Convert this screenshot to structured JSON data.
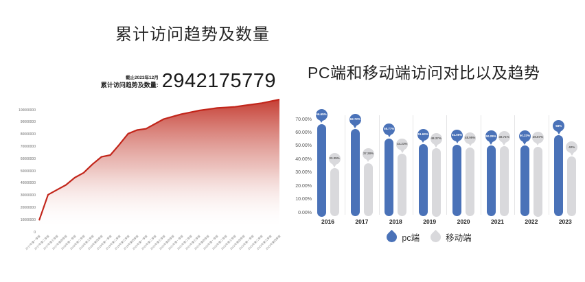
{
  "left_chart": {
    "title": "累计访问趋势及数量",
    "as_of": "截止2023年12月",
    "stat_label": "累计访问趋势及数量:",
    "total": "2942175779"
  },
  "right_chart": {
    "title": "PC端和移动端访问对比以及趋势",
    "legend": {
      "pc": "pc端",
      "mobile": "移动端"
    }
  },
  "colors": {
    "line_red": "#c2251a",
    "area_red_top": "#c13025",
    "area_red_mid": "#d5786e",
    "area_red_bottom": "#ffffff",
    "pc_blue": "#4a72b8",
    "mobile_gray": "#d9d9dc",
    "mobile_label_text": "#5a5a5a",
    "pc_label_text": "#ffffff",
    "separator": "#e4e4e6"
  },
  "chart_data": [
    {
      "type": "area",
      "title": "累计访问趋势及数量",
      "annotation": {
        "as_of": "截止2023年12月",
        "label": "累计访问趋势及数量:",
        "value": "2942175779"
      },
      "x": [
        "2017年第一季度",
        "2017年第二季度",
        "2017年第三季度",
        "2017年第四季度",
        "2018年第一季度",
        "2018年第二季度",
        "2018年第三季度",
        "2018年第四季度",
        "2019年第一季度",
        "2019年第二季度",
        "2019年第三季度",
        "2019年第四季度",
        "2020年第一季度",
        "2020年第二季度",
        "2020年第三季度",
        "2020年第四季度",
        "2021年第一季度",
        "2021年第二季度",
        "2021年第三季度",
        "2021年第四季度",
        "2022年第一季度",
        "2022年第二季度",
        "2022年第三季度",
        "2022年第四季度",
        "2023年第一季度",
        "2023年第二季度",
        "2023年第三季度",
        "2023年第四季度"
      ],
      "values": [
        10000000,
        31000000,
        35000000,
        39000000,
        45000000,
        49000000,
        56000000,
        62000000,
        63500000,
        72000000,
        81000000,
        84000000,
        85000000,
        89000000,
        93000000,
        95000000,
        97000000,
        98500000,
        100000000,
        101000000,
        102000000,
        102500000,
        103000000,
        104000000,
        105000000,
        106000000,
        107500000,
        109000000
      ],
      "yticks": [
        0,
        10000000,
        20000000,
        30000000,
        40000000,
        50000000,
        60000000,
        70000000,
        80000000,
        90000000,
        100000000
      ],
      "ylim": [
        0,
        113000000
      ],
      "grid": false,
      "legend_position": "none"
    },
    {
      "type": "bar",
      "title": "PC端和移动端访问对比以及趋势",
      "categories": [
        "2016",
        "2017",
        "2018",
        "2019",
        "2020",
        "2021",
        "2022",
        "2023"
      ],
      "series": [
        {
          "name": "pc端",
          "color_key": "pc_blue",
          "values": [
            66.65,
            62.72,
            55.77,
            51.63,
            51.05,
            50.29,
            50.33,
            58
          ],
          "labels": [
            "66.65%",
            "62.72%",
            "55.77%",
            "51.63%",
            "51.05%",
            "50.29%",
            "50.33%",
            "58%"
          ]
        },
        {
          "name": "移动端",
          "color_key": "mobile_gray",
          "values": [
            33.35,
            37.28,
            44.23,
            48.37,
            48.95,
            49.71,
            49.67,
            42
          ],
          "labels": [
            "33.35%",
            "37.28%",
            "44.23%",
            "48.37%",
            "48.95%",
            "49.71%",
            "49.67%",
            "42%"
          ]
        }
      ],
      "yticks": [
        "0.00%",
        "10.00%",
        "20.00%",
        "30.00%",
        "40.00%",
        "50.00%",
        "60.00%",
        "70.00%"
      ],
      "ylim": [
        0,
        70
      ],
      "grid": false,
      "legend_position": "bottom"
    }
  ]
}
